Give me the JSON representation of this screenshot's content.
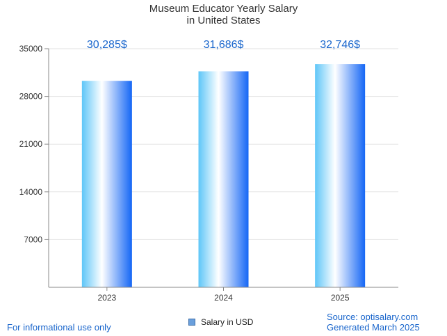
{
  "chart_data": {
    "type": "bar",
    "title_line1": "Museum Educator Yearly Salary",
    "title_line2": "in United States",
    "categories": [
      "2023",
      "2024",
      "2025"
    ],
    "values": [
      30285,
      31686,
      32746
    ],
    "value_labels": [
      "30,285$",
      "31,686$",
      "32,746$"
    ],
    "series": [
      {
        "name": "Salary in USD",
        "values": [
          30285,
          31686,
          32746
        ]
      }
    ],
    "ylim": [
      0,
      35000
    ],
    "yticks": [
      7000,
      14000,
      21000,
      28000,
      35000
    ],
    "ytick_labels": [
      "7000",
      "14000",
      "21000",
      "28000",
      "35000"
    ],
    "xlabel": "",
    "ylabel": "",
    "grid": true,
    "legend_position": "bottom-center",
    "colors": {
      "bar_light": "#5ec6f8",
      "bar_white": "#ffffff",
      "bar_dark": "#1466f5",
      "value_label": "#1a66cc",
      "grid": "#e2e2e2",
      "axis": "#888888"
    }
  },
  "footer": {
    "disclaimer": "For informational use only",
    "source": "Source: optisalary.com",
    "generated": "Generated March 2025"
  }
}
